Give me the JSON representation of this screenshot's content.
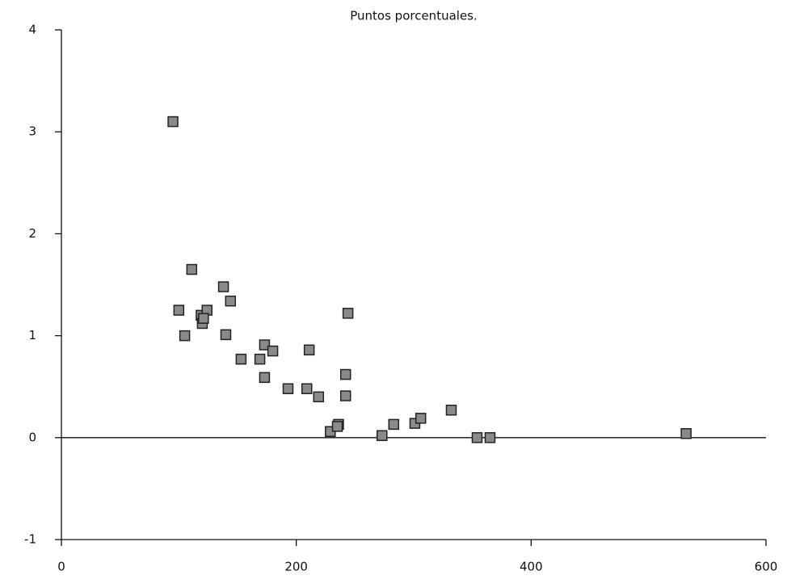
{
  "chart_data": {
    "type": "scatter",
    "title": "Puntos porcentuales.",
    "x": [
      95,
      111,
      100,
      105,
      119,
      120,
      124,
      121,
      138,
      144,
      140,
      153,
      169,
      173,
      180,
      173,
      193,
      209,
      211,
      219,
      244,
      242,
      242,
      229,
      236,
      235,
      273,
      283,
      301,
      306,
      332,
      354,
      365,
      532
    ],
    "values": [
      3.1,
      1.65,
      1.25,
      1.0,
      1.2,
      1.12,
      1.25,
      1.17,
      1.48,
      1.34,
      1.01,
      0.77,
      0.77,
      0.91,
      0.85,
      0.59,
      0.48,
      0.48,
      0.86,
      0.4,
      1.22,
      0.62,
      0.41,
      0.06,
      0.13,
      0.11,
      0.02,
      0.13,
      0.14,
      0.19,
      0.27,
      0.0,
      0.0,
      0.04
    ],
    "color": "#8a8a8a",
    "xlim": [
      0,
      600
    ],
    "xticks": [
      0,
      200,
      400,
      600
    ],
    "ylim": [
      -1,
      4
    ],
    "yticks": [
      -1,
      0,
      1,
      2,
      3,
      4
    ],
    "grid": false
  }
}
